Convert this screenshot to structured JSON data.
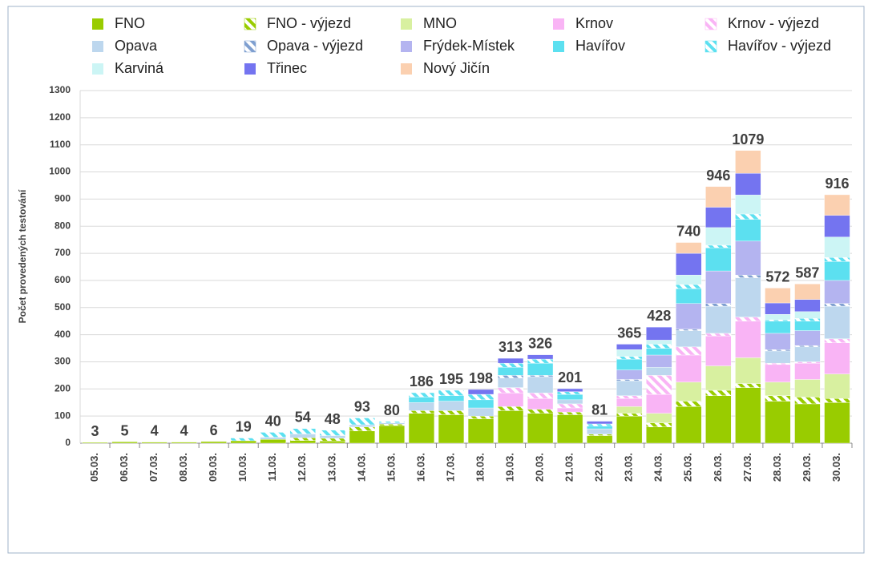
{
  "chart_data": {
    "type": "stacked-bar",
    "y_label": "Počet provedených testování",
    "categories": [
      "05.03.",
      "06.03.",
      "07.03.",
      "08.03.",
      "09.03.",
      "10.03.",
      "11.03.",
      "12.03.",
      "13.03.",
      "14.03.",
      "15.03.",
      "16.03.",
      "17.03.",
      "18.03.",
      "19.03.",
      "20.03.",
      "21.03.",
      "22.03.",
      "23.03.",
      "24.03.",
      "25.03.",
      "26.03.",
      "27.03.",
      "28.03.",
      "29.03.",
      "30.03."
    ],
    "totals": [
      3,
      5,
      4,
      4,
      6,
      19,
      40,
      54,
      48,
      93,
      80,
      186,
      195,
      198,
      313,
      326,
      201,
      81,
      365,
      428,
      740,
      946,
      1079,
      572,
      587,
      916
    ],
    "ylim": [
      0,
      1300
    ],
    "yticks": [
      0,
      100,
      200,
      300,
      400,
      500,
      600,
      700,
      800,
      900,
      1000,
      1100,
      1200,
      1300
    ],
    "grid": true,
    "series": [
      {
        "name": "FNO",
        "color": "#99cc00",
        "hatch": false,
        "values": [
          3,
          5,
          4,
          4,
          6,
          9,
          14,
          10,
          8,
          45,
          65,
          110,
          105,
          90,
          120,
          110,
          105,
          28,
          100,
          60,
          135,
          175,
          205,
          155,
          145,
          150
        ]
      },
      {
        "name": "FNO - výjezd",
        "color": "#99cc00",
        "hatch": true,
        "values": [
          0,
          0,
          0,
          0,
          0,
          0,
          0,
          10,
          10,
          15,
          5,
          10,
          15,
          10,
          15,
          15,
          10,
          5,
          10,
          15,
          20,
          20,
          15,
          20,
          25,
          15
        ]
      },
      {
        "name": "MNO",
        "color": "#d8f0a0",
        "hatch": false,
        "values": [
          0,
          0,
          0,
          0,
          0,
          0,
          0,
          0,
          0,
          0,
          0,
          0,
          0,
          0,
          0,
          0,
          0,
          0,
          25,
          35,
          70,
          90,
          95,
          50,
          65,
          90
        ]
      },
      {
        "name": "Krnov",
        "color": "#f9b4f5",
        "hatch": false,
        "values": [
          0,
          0,
          0,
          0,
          0,
          0,
          0,
          0,
          0,
          0,
          0,
          0,
          0,
          0,
          50,
          40,
          15,
          0,
          30,
          70,
          100,
          110,
          135,
          65,
          60,
          115
        ]
      },
      {
        "name": "Krnov - výjezd",
        "color": "#f9b4f5",
        "hatch": true,
        "values": [
          0,
          0,
          0,
          0,
          0,
          0,
          0,
          0,
          0,
          0,
          0,
          0,
          0,
          0,
          20,
          20,
          15,
          0,
          10,
          70,
          30,
          10,
          15,
          5,
          5,
          15
        ]
      },
      {
        "name": "Opava",
        "color": "#bdd7ee",
        "hatch": false,
        "values": [
          0,
          0,
          0,
          0,
          0,
          0,
          8,
          14,
          10,
          8,
          5,
          30,
          35,
          30,
          35,
          60,
          15,
          20,
          55,
          30,
          60,
          100,
          145,
          45,
          55,
          120
        ]
      },
      {
        "name": "Opava - výjezd",
        "color": "#7f9fd0",
        "hatch": true,
        "values": [
          0,
          0,
          0,
          0,
          0,
          0,
          0,
          0,
          0,
          0,
          0,
          0,
          0,
          0,
          10,
          5,
          0,
          0,
          5,
          0,
          5,
          10,
          10,
          5,
          5,
          10
        ]
      },
      {
        "name": "Frýdek-Místek",
        "color": "#b4b4f0",
        "hatch": false,
        "values": [
          0,
          0,
          0,
          0,
          0,
          0,
          0,
          0,
          0,
          0,
          0,
          0,
          0,
          0,
          0,
          0,
          0,
          0,
          35,
          45,
          95,
          120,
          125,
          60,
          55,
          85
        ]
      },
      {
        "name": "Havířov",
        "color": "#5ce0f0",
        "hatch": false,
        "values": [
          0,
          0,
          0,
          0,
          0,
          0,
          0,
          0,
          0,
          0,
          0,
          20,
          20,
          30,
          30,
          45,
          20,
          10,
          40,
          25,
          55,
          85,
          80,
          45,
          35,
          70
        ]
      },
      {
        "name": "Havířov - výjezd",
        "color": "#5ce0f0",
        "hatch": true,
        "values": [
          0,
          0,
          0,
          0,
          0,
          10,
          18,
          20,
          20,
          25,
          5,
          16,
          20,
          20,
          15,
          15,
          10,
          8,
          10,
          15,
          15,
          10,
          20,
          5,
          10,
          15
        ]
      },
      {
        "name": "Karviná",
        "color": "#ccf5f5",
        "hatch": false,
        "values": [
          0,
          0,
          0,
          0,
          0,
          0,
          0,
          0,
          0,
          0,
          0,
          0,
          0,
          0,
          0,
          0,
          0,
          0,
          25,
          15,
          35,
          65,
          70,
          20,
          25,
          75
        ]
      },
      {
        "name": "Třinec",
        "color": "#7474f0",
        "hatch": false,
        "values": [
          0,
          0,
          0,
          0,
          0,
          0,
          0,
          0,
          0,
          0,
          0,
          0,
          0,
          18,
          18,
          16,
          11,
          10,
          20,
          48,
          80,
          75,
          80,
          42,
          45,
          80
        ]
      },
      {
        "name": "Nový Jičín",
        "color": "#fbd0b0",
        "hatch": false,
        "values": [
          0,
          0,
          0,
          0,
          0,
          0,
          0,
          0,
          0,
          0,
          0,
          0,
          0,
          0,
          0,
          0,
          0,
          0,
          0,
          0,
          40,
          76,
          84,
          55,
          57,
          76
        ]
      }
    ]
  }
}
